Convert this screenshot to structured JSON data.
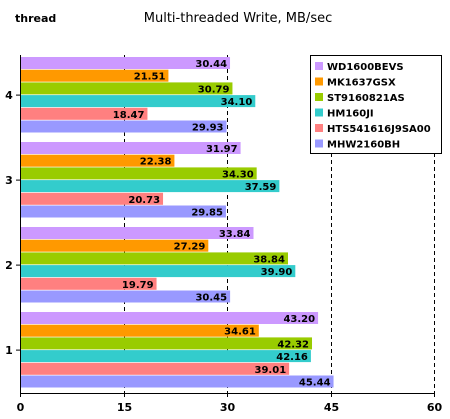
{
  "chart_data": {
    "type": "bar",
    "orientation": "horizontal",
    "title": "Multi-threaded Write, MB/sec",
    "ylabel": "thread",
    "xlabel": "",
    "categories": [
      "4",
      "3",
      "2",
      "1"
    ],
    "xlim": [
      0,
      60
    ],
    "xticks": [
      "0",
      "15",
      "30",
      "45",
      "60"
    ],
    "grid": "vertical dashed",
    "legend_position": "top-right",
    "series": [
      {
        "name": "WD1600BEVS",
        "color": "#cc99ff",
        "values": [
          30.44,
          31.97,
          33.84,
          43.2
        ],
        "labels": [
          "30.44",
          "31.97",
          "33.84",
          "43.20"
        ]
      },
      {
        "name": "MK1637GSX",
        "color": "#ff9900",
        "values": [
          21.51,
          22.38,
          27.29,
          34.61
        ],
        "labels": [
          "21.51",
          "22.38",
          "27.29",
          "34.61"
        ]
      },
      {
        "name": "ST9160821AS",
        "color": "#99cc00",
        "values": [
          30.79,
          34.3,
          38.84,
          42.32
        ],
        "labels": [
          "30.79",
          "34.30",
          "38.84",
          "42.32"
        ]
      },
      {
        "name": "HM160JI",
        "color": "#33cccc",
        "values": [
          34.1,
          37.59,
          39.9,
          42.16
        ],
        "labels": [
          "34.10",
          "37.59",
          "39.90",
          "42.16"
        ]
      },
      {
        "name": "HTS541616J9SA00",
        "color": "#ff8080",
        "values": [
          18.47,
          20.73,
          19.79,
          39.01
        ],
        "labels": [
          "18.47",
          "20.73",
          "19.79",
          "39.01"
        ]
      },
      {
        "name": "MHW2160BH",
        "color": "#9999ff",
        "values": [
          29.93,
          29.85,
          30.45,
          45.44
        ],
        "labels": [
          "29.93",
          "29.85",
          "30.45",
          "45.44"
        ]
      }
    ]
  }
}
